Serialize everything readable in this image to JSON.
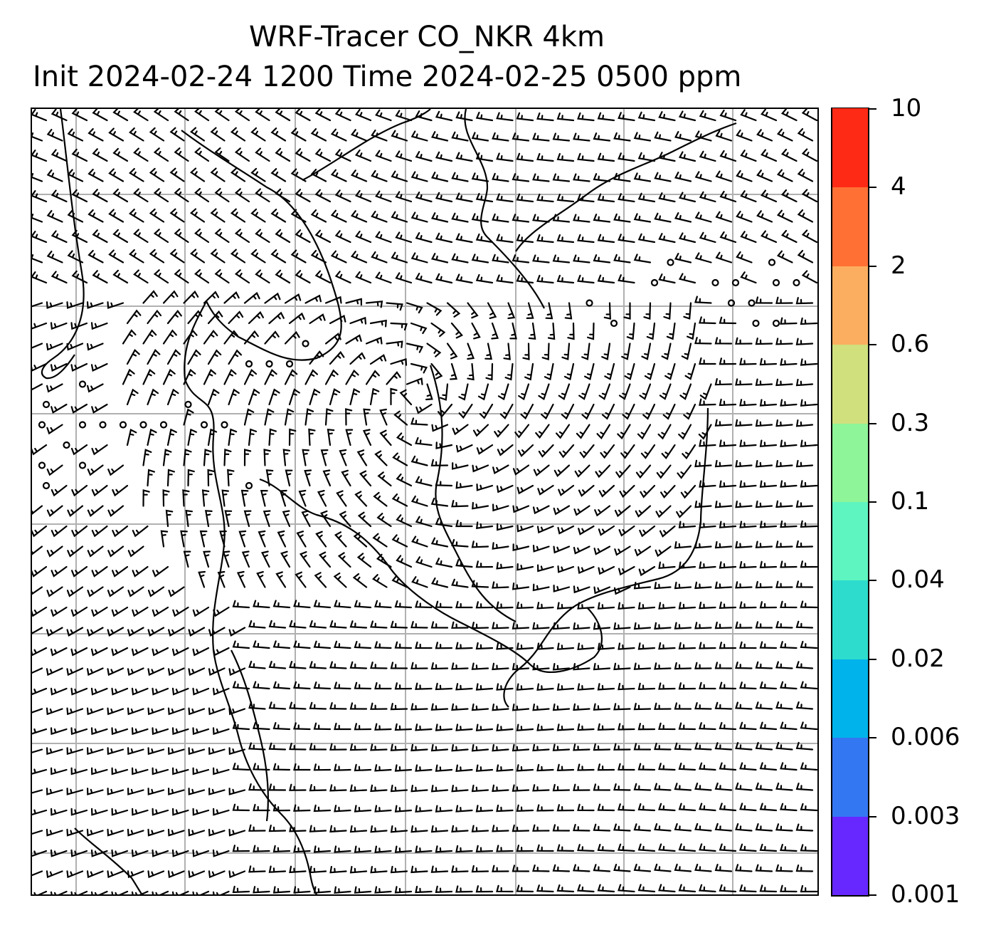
{
  "title": {
    "line1": "WRF-Tracer CO_NKR 4km",
    "line2": "Init 2024-02-24 1200 Time 2024-02-25 0500 ppm"
  },
  "colorbar": {
    "levels": [
      "0.001",
      "0.003",
      "0.006",
      "0.02",
      "0.04",
      "0.1",
      "0.3",
      "0.6",
      "2",
      "4",
      "10"
    ],
    "colors": [
      "#6628ff",
      "#3477f2",
      "#00b3ea",
      "#2ddccd",
      "#5ff5c0",
      "#8ef598",
      "#cfe07d",
      "#fbae5f",
      "#ff7035",
      "#ff2a16"
    ]
  },
  "map": {
    "barb_color": "#000000",
    "coast_color": "#000000",
    "grid_color": "#b0b0b0"
  }
}
